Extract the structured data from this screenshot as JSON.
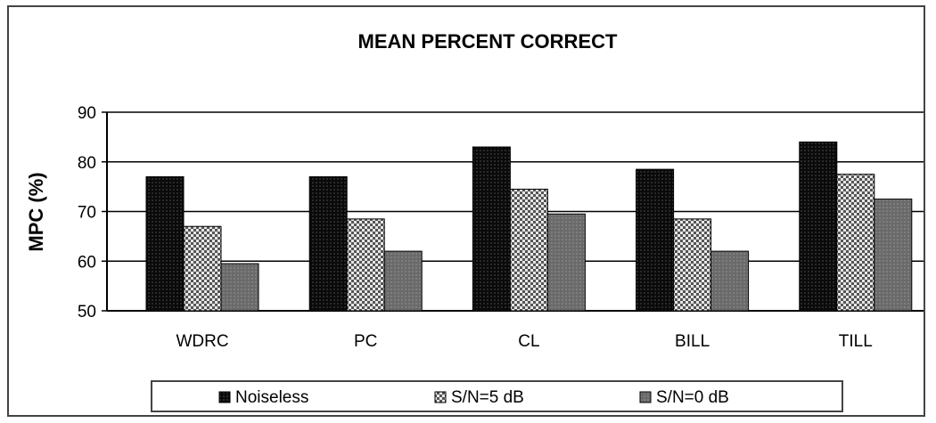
{
  "chart_data": {
    "type": "bar",
    "title": "MEAN PERCENT CORRECT",
    "xlabel": "",
    "ylabel": "MPC (%)",
    "ylim": [
      50,
      90
    ],
    "yticks": [
      50,
      60,
      70,
      80,
      90
    ],
    "grid": true,
    "legend_position": "bottom",
    "categories": [
      "WDRC",
      "PC",
      "CL",
      "BILL",
      "TILL"
    ],
    "series": [
      {
        "name": "Noiseless",
        "values": [
          77,
          77,
          83,
          78.5,
          84
        ],
        "color": "#111111",
        "pattern": "solid"
      },
      {
        "name": "S/N=5 dB",
        "values": [
          67,
          68.5,
          74.5,
          68.5,
          77.5
        ],
        "color": "#9a9a9a",
        "pattern": "checker"
      },
      {
        "name": "S/N=0 dB",
        "values": [
          59.5,
          62,
          69.5,
          62,
          72.5
        ],
        "color": "#6e6e6e",
        "pattern": "solid"
      }
    ]
  }
}
